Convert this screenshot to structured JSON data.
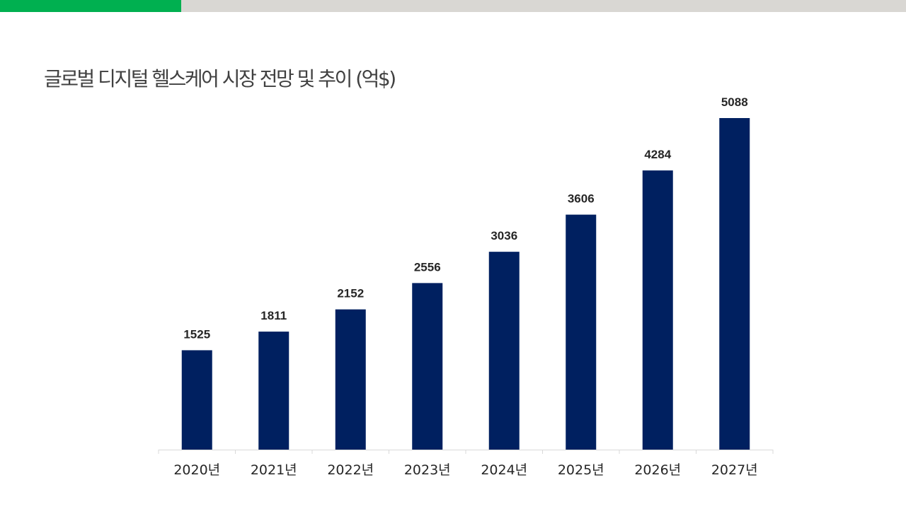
{
  "title": "글로벌 디지털 헬스케어 시장 전망 및 추이 (억$)",
  "colors": {
    "accent_green": "#00b050",
    "topbar_gray": "#d9d7d3",
    "bar": "#002060",
    "axis": "#d9d9d9",
    "text": "#262626",
    "title": "#404040"
  },
  "chart_data": {
    "type": "bar",
    "title": "글로벌 디지털 헬스케어 시장 전망 및 추이 (억$)",
    "categories": [
      "2020년",
      "2021년",
      "2022년",
      "2023년",
      "2024년",
      "2025년",
      "2026년",
      "2027년"
    ],
    "values": [
      1525,
      1811,
      2152,
      2556,
      3036,
      3606,
      4284,
      5088
    ],
    "xlabel": "",
    "ylabel": "",
    "ylim": [
      0,
      5088
    ],
    "grid": false,
    "legend": "none",
    "data_labels": true
  }
}
